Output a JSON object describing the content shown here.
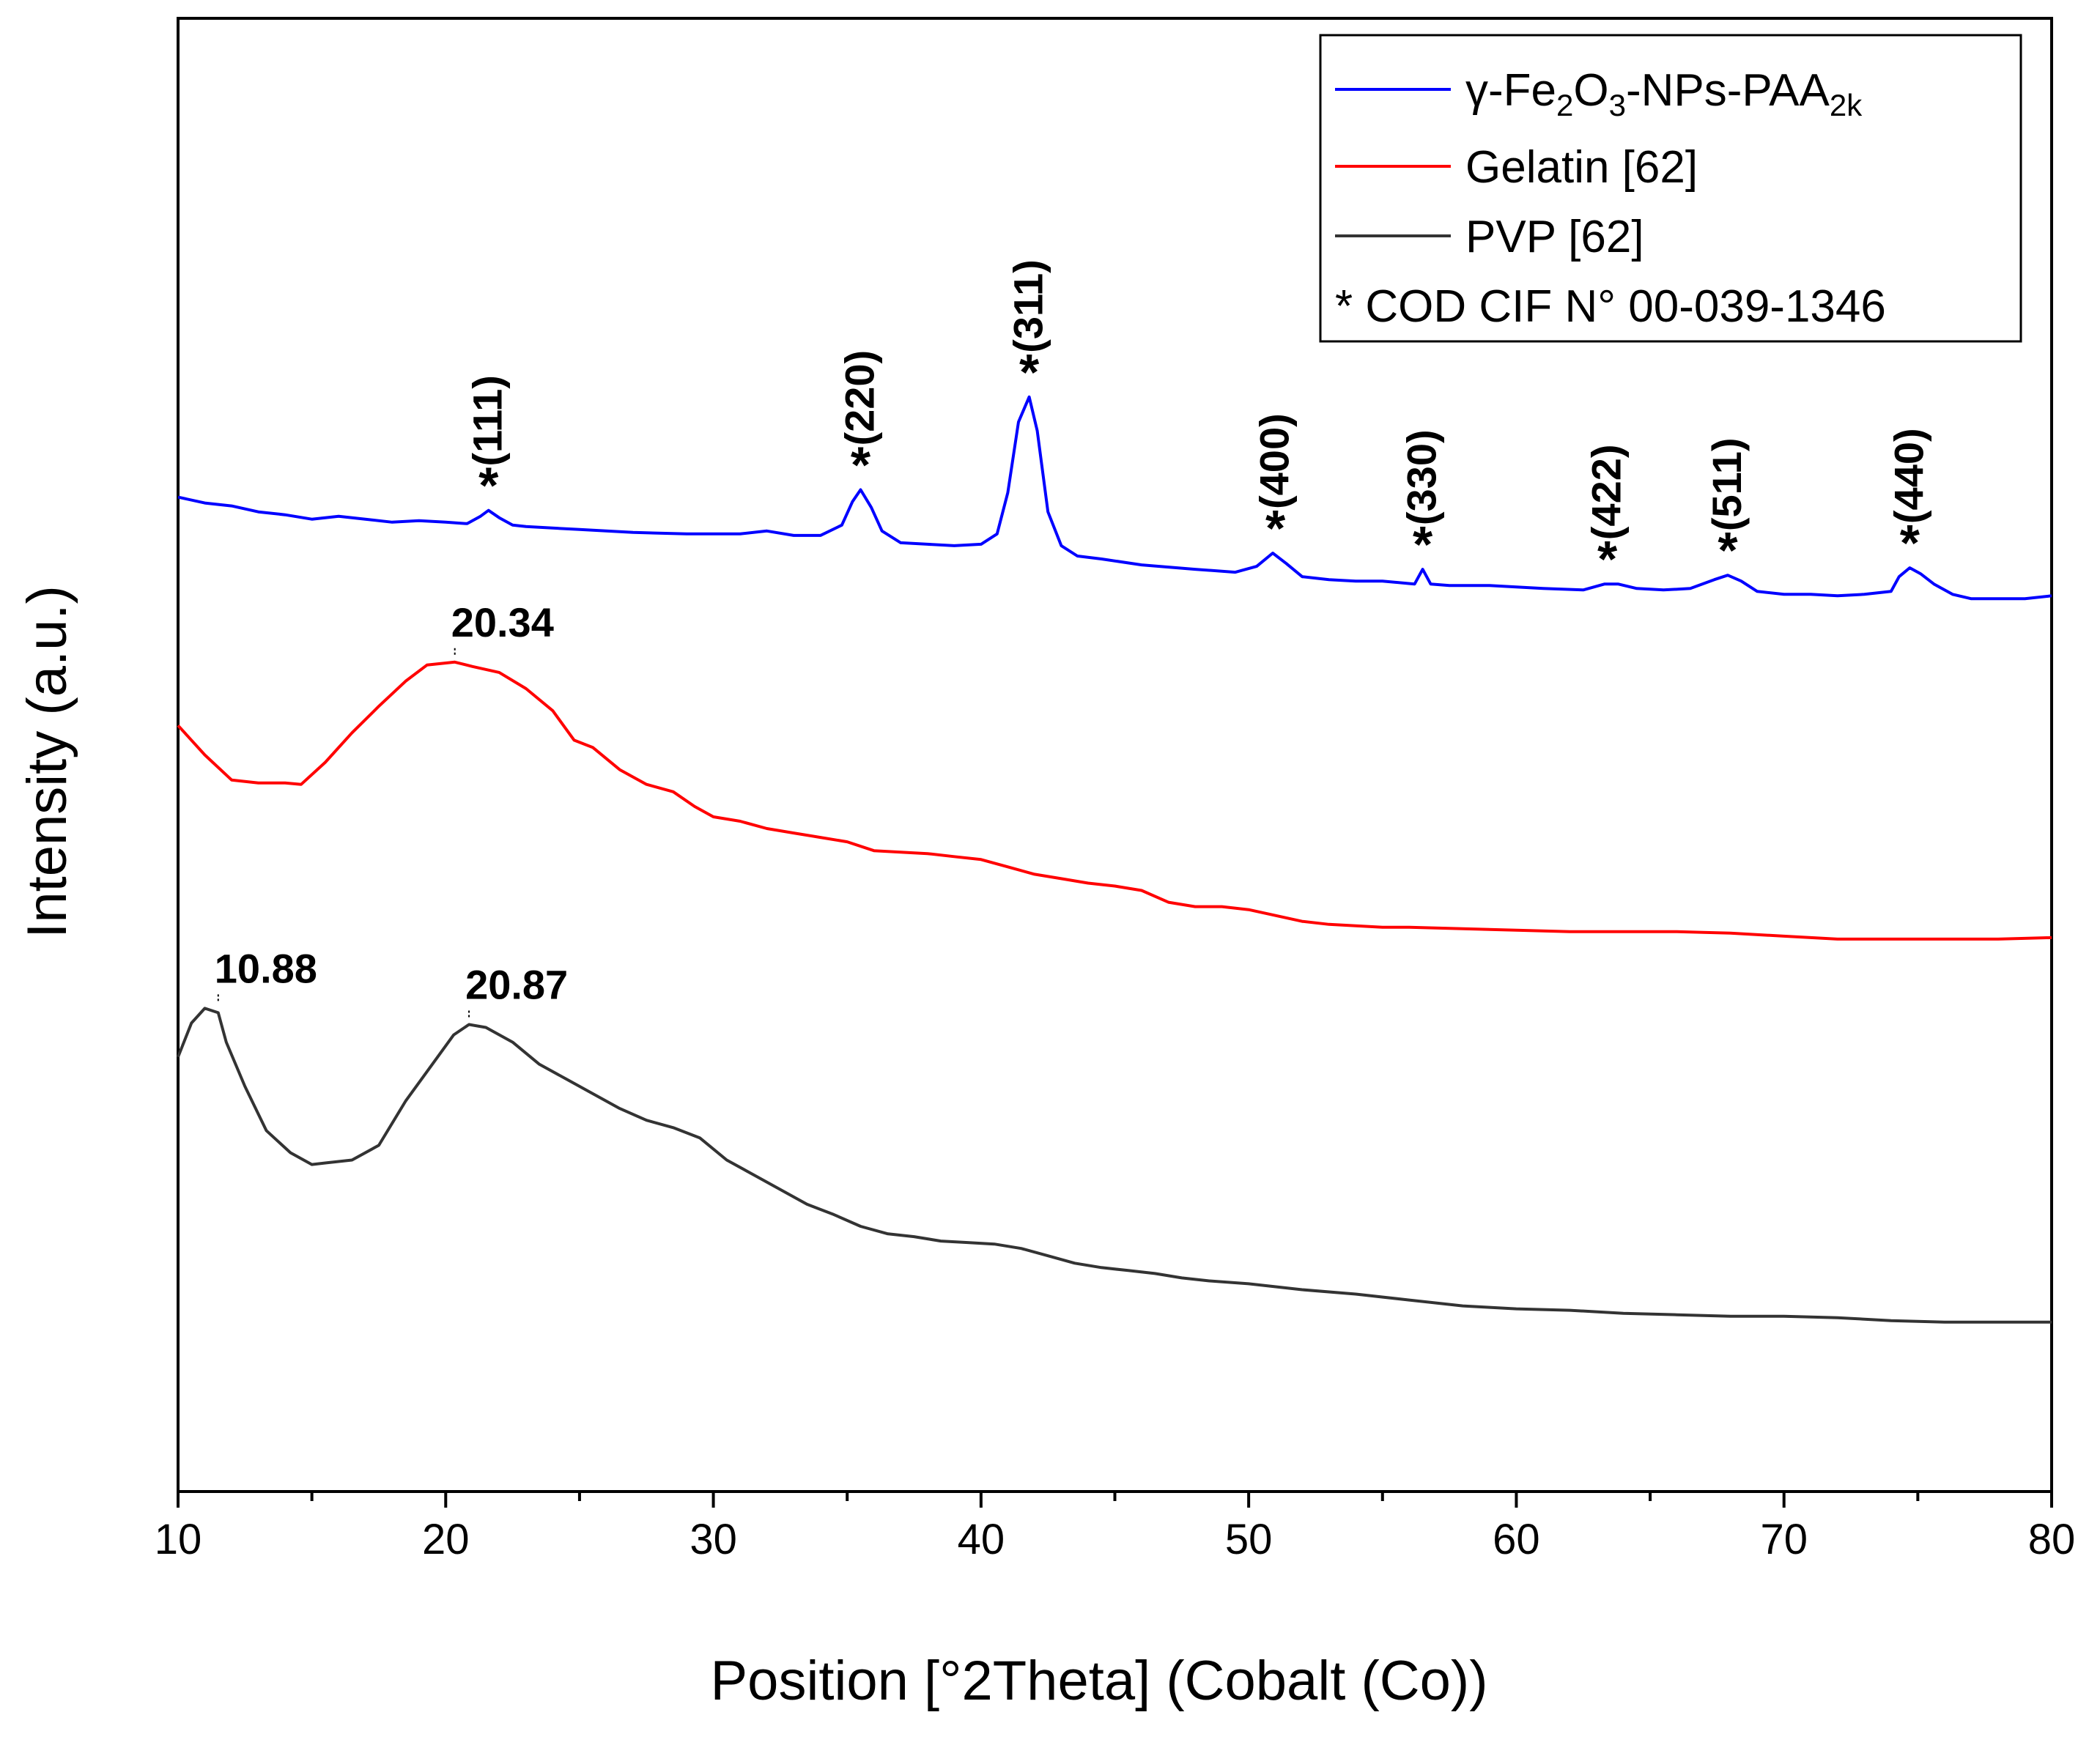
{
  "chart_data": {
    "type": "line",
    "xlabel": "Position [°2Theta] (Cobalt (Co))",
    "ylabel": "Intensity (a.u.)",
    "xlim": [
      10,
      80
    ],
    "ylim": [
      0,
      100
    ],
    "xticks": [
      "10",
      "20",
      "30",
      "40",
      "50",
      "60",
      "70",
      "80"
    ],
    "legend": {
      "position": "top-right",
      "entries": [
        {
          "name": "γ-Fe2O3-NPs-PAA2k",
          "color": "#0000ff"
        },
        {
          "name": "Gelatin [62]",
          "color": "#ff0000"
        },
        {
          "name": "PVP [62]",
          "color": "#333333"
        }
      ],
      "note": "* COD CIF N° 00-039-1346",
      "series1_parts": {
        "g": "γ-Fe",
        "s2": "2",
        "o": "O",
        "s3": "3",
        "rest": "-NPs-PAA",
        "s2k": "2k"
      }
    },
    "series": [
      {
        "name": "γ-Fe2O3-NPs-PAA2k",
        "color": "#0000ff",
        "x": [
          10.0,
          11,
          12,
          13,
          14,
          15,
          16,
          17,
          18,
          19,
          20,
          20.8,
          21.3,
          21.6,
          22.0,
          22.5,
          23,
          25,
          27,
          29,
          31,
          32,
          33,
          34,
          34.8,
          35.2,
          35.5,
          35.9,
          36.3,
          37,
          38,
          39,
          40,
          40.6,
          41.0,
          41.4,
          41.8,
          42.1,
          42.5,
          43.0,
          43.6,
          44.5,
          46,
          48,
          49.5,
          50.3,
          50.9,
          51.4,
          52,
          53,
          54,
          55,
          56.2,
          56.5,
          56.8,
          57.5,
          59,
          61,
          62.5,
          63.3,
          63.8,
          64.5,
          65.5,
          66.5,
          67.4,
          67.9,
          68.4,
          69,
          70,
          71,
          72,
          73,
          74.0,
          74.3,
          74.7,
          75.1,
          75.6,
          76.3,
          77,
          78,
          79,
          80
        ],
        "y": [
          67.5,
          67.1,
          66.9,
          66.5,
          66.3,
          66.0,
          66.2,
          66.0,
          65.8,
          65.9,
          65.8,
          65.7,
          66.2,
          66.6,
          66.1,
          65.6,
          65.5,
          65.3,
          65.1,
          65.0,
          65.0,
          65.2,
          64.9,
          64.9,
          65.6,
          67.2,
          68.0,
          66.8,
          65.2,
          64.4,
          64.3,
          64.2,
          64.3,
          65.0,
          67.8,
          72.6,
          74.3,
          72.0,
          66.5,
          64.2,
          63.5,
          63.3,
          62.9,
          62.6,
          62.4,
          62.8,
          63.7,
          63.0,
          62.1,
          61.9,
          61.8,
          61.8,
          61.6,
          62.6,
          61.6,
          61.5,
          61.5,
          61.3,
          61.2,
          61.6,
          61.6,
          61.3,
          61.2,
          61.3,
          61.9,
          62.2,
          61.8,
          61.1,
          60.9,
          60.9,
          60.8,
          60.9,
          61.1,
          62.1,
          62.7,
          62.3,
          61.6,
          60.9,
          60.6,
          60.6,
          60.6,
          60.8
        ]
      },
      {
        "name": "Gelatin [62]",
        "color": "#ff0000",
        "x": [
          10,
          11,
          12,
          13,
          14,
          14.6,
          15.5,
          16.5,
          17.5,
          18.5,
          19.3,
          20.34,
          21,
          22,
          23,
          24,
          24.8,
          25.5,
          26.5,
          27.5,
          28.5,
          29.3,
          30,
          31,
          32,
          33,
          34,
          35,
          36,
          37,
          38,
          39,
          40,
          41,
          42,
          43,
          44,
          45,
          46,
          47,
          48,
          49,
          50,
          51,
          52,
          53,
          54,
          55,
          56,
          58,
          60,
          62,
          64,
          66,
          68,
          70,
          72,
          74,
          76,
          78,
          80
        ],
        "y": [
          52.0,
          50.0,
          48.3,
          48.1,
          48.1,
          48.0,
          49.5,
          51.5,
          53.3,
          55.0,
          56.1,
          56.3,
          56.0,
          55.6,
          54.5,
          53.0,
          51.0,
          50.5,
          49.0,
          48.0,
          47.5,
          46.5,
          45.8,
          45.5,
          45.0,
          44.7,
          44.4,
          44.1,
          43.5,
          43.4,
          43.3,
          43.1,
          42.9,
          42.4,
          41.9,
          41.6,
          41.3,
          41.1,
          40.8,
          40.0,
          39.7,
          39.7,
          39.5,
          39.1,
          38.7,
          38.5,
          38.4,
          38.3,
          38.3,
          38.2,
          38.1,
          38.0,
          38.0,
          38.0,
          37.9,
          37.7,
          37.5,
          37.5,
          37.5,
          37.5,
          37.6
        ]
      },
      {
        "name": "PVP [62]",
        "color": "#333333",
        "x": [
          10,
          10.5,
          11.0,
          11.5,
          11.8,
          12.5,
          13.3,
          14.2,
          15.0,
          15.5,
          16.5,
          17.5,
          18.5,
          19.5,
          20.3,
          20.87,
          21.5,
          22.5,
          23.5,
          24.5,
          25.5,
          26.5,
          27.5,
          28.5,
          29.5,
          30.5,
          31.5,
          32.5,
          33.5,
          34.5,
          35.5,
          36.5,
          37.5,
          38.5,
          39.5,
          40.5,
          41.5,
          42.5,
          43.5,
          44.5,
          45.5,
          46.5,
          47.5,
          48.5,
          50,
          52,
          54,
          56,
          58,
          59,
          60,
          62,
          64,
          66,
          68,
          70,
          72,
          74,
          76,
          78,
          80
        ],
        "y": [
          29.5,
          31.8,
          32.8,
          32.5,
          30.5,
          27.5,
          24.5,
          23.0,
          22.2,
          22.3,
          22.5,
          23.5,
          26.5,
          29.0,
          31.0,
          31.7,
          31.5,
          30.5,
          29.0,
          28.0,
          27.0,
          26.0,
          25.2,
          24.7,
          24.0,
          22.5,
          21.5,
          20.5,
          19.5,
          18.8,
          18.0,
          17.5,
          17.3,
          17.0,
          16.9,
          16.8,
          16.5,
          16.0,
          15.5,
          15.2,
          15.0,
          14.8,
          14.5,
          14.3,
          14.1,
          13.7,
          13.4,
          13.0,
          12.6,
          12.5,
          12.4,
          12.3,
          12.1,
          12.0,
          11.9,
          11.9,
          11.8,
          11.6,
          11.5,
          11.5,
          11.5
        ]
      }
    ],
    "annotations": [
      {
        "text": "(111)",
        "x": 21.6,
        "y": 66.6
      },
      {
        "text": "(220)",
        "x": 35.5,
        "y": 68.0
      },
      {
        "text": "(311)",
        "x": 41.8,
        "y": 74.3
      },
      {
        "text": "(400)",
        "x": 51.0,
        "y": 63.7
      },
      {
        "text": "(330)",
        "x": 56.5,
        "y": 62.6
      },
      {
        "text": "(422)",
        "x": 63.4,
        "y": 61.6
      },
      {
        "text": "(511)",
        "x": 67.9,
        "y": 62.2
      },
      {
        "text": "(440)",
        "x": 74.7,
        "y": 62.7
      }
    ],
    "peak_labels": [
      {
        "text": "20.34",
        "x": 20.34,
        "y": 56.3
      },
      {
        "text": "10.88",
        "x": 11.5,
        "y": 32.8
      },
      {
        "text": "20.87",
        "x": 20.87,
        "y": 31.7
      }
    ]
  }
}
